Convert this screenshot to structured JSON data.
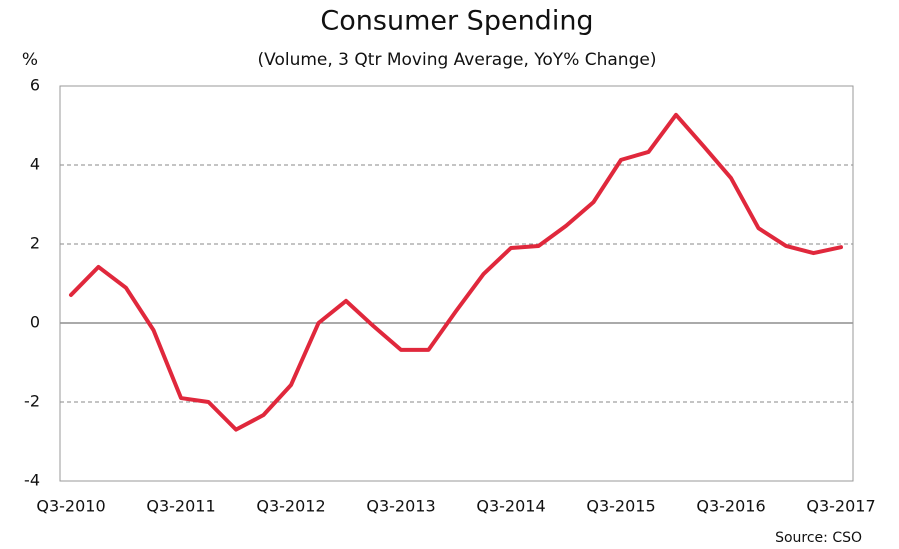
{
  "chart_data": {
    "type": "line",
    "title": "Consumer Spending",
    "subtitle": "(Volume, 3 Qtr Moving Average, YoY% Change)",
    "y_label": "%",
    "source": "Source: CSO",
    "categories": [
      "Q3-2010",
      null,
      null,
      null,
      "Q3-2011",
      null,
      null,
      null,
      "Q3-2012",
      null,
      null,
      null,
      "Q3-2013",
      null,
      null,
      null,
      "Q3-2014",
      null,
      null,
      null,
      "Q3-2015",
      null,
      null,
      null,
      "Q3-2016",
      null,
      null,
      null,
      "Q3-2017"
    ],
    "series": [
      {
        "name": "Consumer Spending",
        "color": "#e0283c",
        "values": [
          0.71,
          1.42,
          0.89,
          -0.18,
          -1.9,
          -2.0,
          -2.7,
          -2.33,
          -1.57,
          0,
          0.56,
          -0.08,
          -0.68,
          -0.68,
          0.3,
          1.24,
          1.9,
          1.95,
          2.46,
          3.06,
          4.13,
          4.33,
          5.27,
          4.48,
          3.67,
          2.4,
          1.95,
          1.77,
          1.92
        ]
      }
    ],
    "ylim": [
      -4,
      6
    ],
    "yticks": [
      -4,
      -2,
      0,
      2,
      4,
      6
    ],
    "grid": true
  }
}
